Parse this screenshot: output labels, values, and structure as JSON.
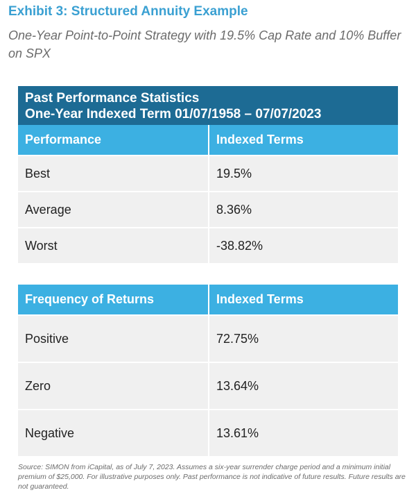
{
  "exhibit": {
    "title": "Exhibit 3: Structured Annuity Example",
    "subtitle": "One-Year Point-to-Point Strategy with 19.5% Cap Rate and 10% Buffer on SPX"
  },
  "table1": {
    "header_line1": "Past Performance Statistics",
    "header_line2": "One-Year Indexed Term 01/07/1958 – 07/07/2023",
    "col1": "Performance",
    "col2": "Indexed Terms",
    "rows": [
      {
        "label": "Best",
        "value": "19.5%"
      },
      {
        "label": "Average",
        "value": "8.36%"
      },
      {
        "label": "Worst",
        "value": "-38.82%"
      }
    ]
  },
  "table2": {
    "col1": "Frequency of Returns",
    "col2": "Indexed Terms",
    "rows": [
      {
        "label": "Positive",
        "value": "72.75%"
      },
      {
        "label": "Zero",
        "value": "13.64%"
      },
      {
        "label": "Negative",
        "value": "13.61%"
      }
    ]
  },
  "source": "Source: SIMON from iCapital, as of July 7, 2023. Assumes a six-year surrender charge period and a minimum initial premium of $25,000. For illustrative purposes only. Past performance is not indicative of future results. Future results are not guaranteed.",
  "colors": {
    "title": "#3aa0d2",
    "panel_header": "#1d6b94",
    "column_header": "#3cb0e2",
    "row_background": "#f0f0f0"
  }
}
